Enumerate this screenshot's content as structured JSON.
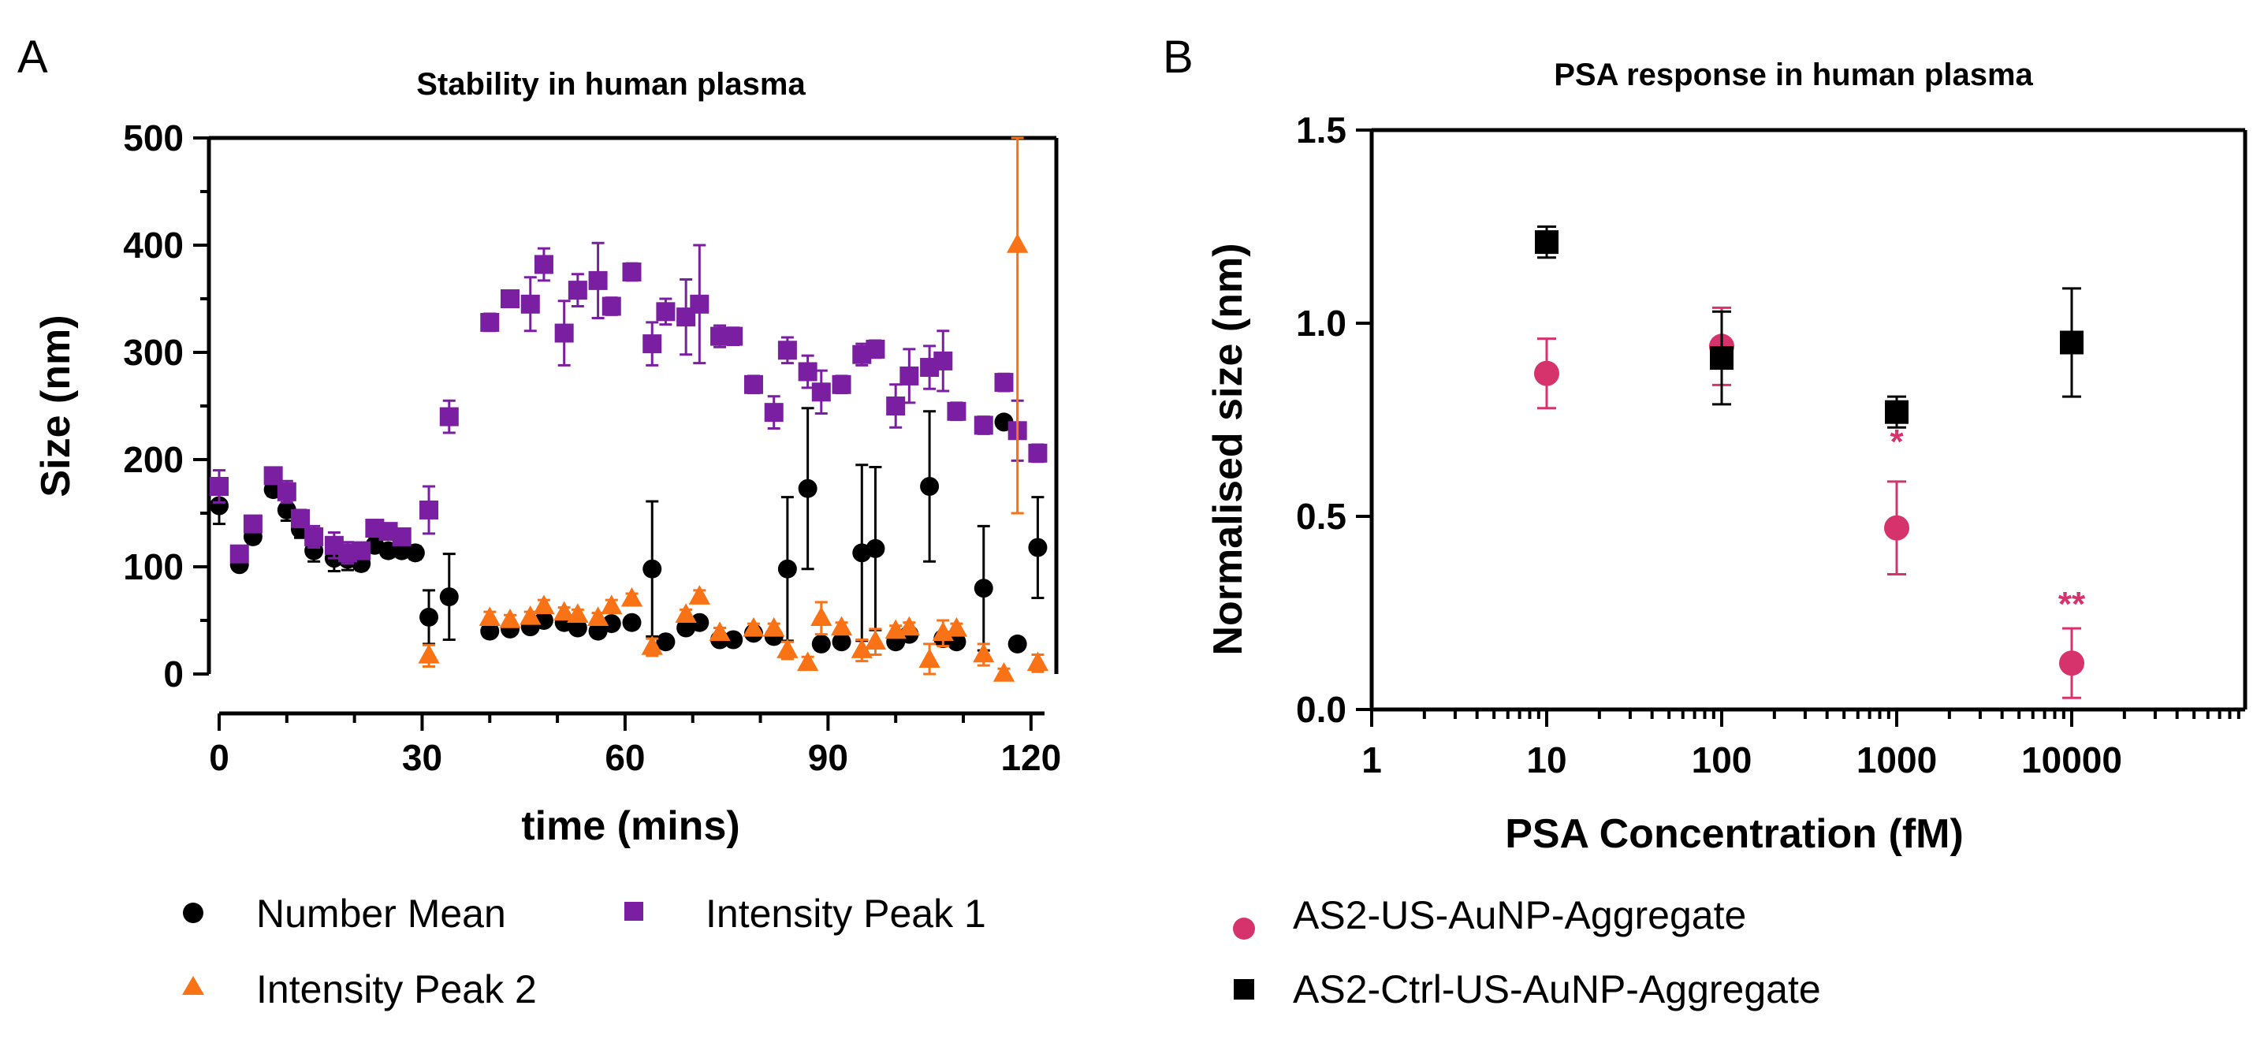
{
  "panels": {
    "a": {
      "letter": "A"
    },
    "b": {
      "letter": "B"
    }
  },
  "chart_data": [
    {
      "type": "scatter",
      "title": "Stability in human plasma",
      "xlabel": "time (mins)",
      "ylabel": "Size (nm)",
      "xlim": [
        0,
        122
      ],
      "ylim": [
        0,
        500
      ],
      "xticks": [
        0,
        30,
        60,
        90,
        120
      ],
      "yticks": [
        0,
        100,
        200,
        300,
        400,
        500
      ],
      "legend_position": "bottom",
      "series": [
        {
          "name": "Number Mean",
          "color": "#000000",
          "marker": "circle",
          "points": [
            [
              0,
              157,
              17
            ],
            [
              3,
              102,
              5
            ],
            [
              5,
              128,
              6
            ],
            [
              8,
              172,
              6
            ],
            [
              10,
              153,
              10
            ],
            [
              12,
              135,
              8
            ],
            [
              14,
              115,
              10
            ],
            [
              17,
              108,
              12
            ],
            [
              19,
              107,
              10
            ],
            [
              21,
              103,
              6
            ],
            [
              23,
              120,
              6
            ],
            [
              25,
              115,
              6
            ],
            [
              27,
              115,
              6
            ],
            [
              29,
              113,
              6
            ],
            [
              31,
              53,
              25
            ],
            [
              34,
              72,
              40
            ],
            [
              40,
              40,
              5
            ],
            [
              43,
              42,
              5
            ],
            [
              46,
              44,
              5
            ],
            [
              48,
              50,
              5
            ],
            [
              51,
              48,
              5
            ],
            [
              53,
              43,
              5
            ],
            [
              56,
              40,
              5
            ],
            [
              58,
              47,
              5
            ],
            [
              61,
              48,
              5
            ],
            [
              64,
              98,
              63
            ],
            [
              66,
              30,
              5
            ],
            [
              69,
              43,
              5
            ],
            [
              71,
              48,
              5
            ],
            [
              74,
              32,
              5
            ],
            [
              76,
              32,
              5
            ],
            [
              79,
              38,
              5
            ],
            [
              82,
              35,
              5
            ],
            [
              84,
              98,
              67
            ],
            [
              87,
              173,
              75
            ],
            [
              89,
              28,
              5
            ],
            [
              92,
              30,
              5
            ],
            [
              95,
              113,
              82
            ],
            [
              97,
              117,
              76
            ],
            [
              100,
              30,
              5
            ],
            [
              102,
              37,
              5
            ],
            [
              105,
              175,
              70
            ],
            [
              107,
              33,
              5
            ],
            [
              109,
              30,
              5
            ],
            [
              113,
              80,
              58
            ],
            [
              116,
              235,
              5
            ],
            [
              118,
              28,
              5
            ],
            [
              121,
              118,
              47
            ]
          ]
        },
        {
          "name": "Intensity Peak 1",
          "color": "#7B1FA2",
          "marker": "square",
          "points": [
            [
              0,
              175,
              15
            ],
            [
              3,
              112,
              5
            ],
            [
              5,
              140,
              6
            ],
            [
              8,
              185,
              6
            ],
            [
              10,
              170,
              10
            ],
            [
              12,
              145,
              8
            ],
            [
              14,
              128,
              10
            ],
            [
              17,
              120,
              12
            ],
            [
              19,
              113,
              10
            ],
            [
              21,
              115,
              6
            ],
            [
              23,
              136,
              6
            ],
            [
              25,
              133,
              6
            ],
            [
              27,
              128,
              6
            ],
            [
              31,
              153,
              22
            ],
            [
              34,
              240,
              15
            ],
            [
              40,
              328,
              8
            ],
            [
              43,
              350,
              6
            ],
            [
              46,
              345,
              25
            ],
            [
              48,
              382,
              15
            ],
            [
              51,
              318,
              30
            ],
            [
              53,
              358,
              15
            ],
            [
              56,
              367,
              35
            ],
            [
              58,
              343,
              8
            ],
            [
              61,
              375,
              8
            ],
            [
              64,
              308,
              20
            ],
            [
              66,
              338,
              12
            ],
            [
              69,
              333,
              35
            ],
            [
              71,
              345,
              55
            ],
            [
              74,
              315,
              10
            ],
            [
              76,
              315,
              8
            ],
            [
              79,
              270,
              8
            ],
            [
              82,
              244,
              15
            ],
            [
              84,
              302,
              12
            ],
            [
              87,
              282,
              15
            ],
            [
              89,
              263,
              20
            ],
            [
              92,
              270,
              8
            ],
            [
              95,
              298,
              10
            ],
            [
              97,
              303,
              8
            ],
            [
              100,
              250,
              20
            ],
            [
              102,
              278,
              25
            ],
            [
              105,
              286,
              20
            ],
            [
              107,
              292,
              28
            ],
            [
              109,
              245,
              8
            ],
            [
              113,
              232,
              8
            ],
            [
              116,
              272,
              8
            ],
            [
              118,
              227,
              28
            ],
            [
              121,
              206,
              8
            ]
          ]
        },
        {
          "name": "Intensity Peak 2",
          "color": "#F97316",
          "marker": "triangle",
          "points": [
            [
              31,
              17,
              10
            ],
            [
              40,
              52,
              6
            ],
            [
              43,
              50,
              5
            ],
            [
              46,
              53,
              5
            ],
            [
              48,
              63,
              6
            ],
            [
              51,
              57,
              5
            ],
            [
              53,
              55,
              5
            ],
            [
              56,
              52,
              5
            ],
            [
              58,
              63,
              6
            ],
            [
              61,
              70,
              5
            ],
            [
              64,
              25,
              8
            ],
            [
              69,
              55,
              5
            ],
            [
              71,
              72,
              6
            ],
            [
              74,
              38,
              5
            ],
            [
              79,
              42,
              5
            ],
            [
              82,
              42,
              5
            ],
            [
              84,
              22,
              8
            ],
            [
              87,
              10,
              6
            ],
            [
              89,
              52,
              15
            ],
            [
              92,
              43,
              5
            ],
            [
              95,
              22,
              10
            ],
            [
              97,
              30,
              12
            ],
            [
              100,
              40,
              5
            ],
            [
              102,
              43,
              5
            ],
            [
              105,
              13,
              15
            ],
            [
              107,
              38,
              12
            ],
            [
              109,
              42,
              5
            ],
            [
              113,
              18,
              10
            ],
            [
              116,
              0,
              5
            ],
            [
              118,
              400,
              250
            ],
            [
              121,
              10,
              8
            ]
          ]
        }
      ]
    },
    {
      "type": "scatter",
      "title": "PSA response in human plasma",
      "xlabel": "PSA Concentration (fM)",
      "ylabel": "Normalised size (nm)",
      "xscale": "log",
      "xlim": [
        1,
        100000
      ],
      "ylim": [
        0,
        1.5
      ],
      "xticks": [
        1,
        10,
        100,
        1000,
        10000
      ],
      "xticklabels": [
        "1",
        "10",
        "100",
        "1000",
        "10000"
      ],
      "yticks": [
        0.0,
        0.5,
        1.0,
        1.5
      ],
      "yticklabels": [
        "0.0",
        "0.5",
        "1.0",
        "1.5"
      ],
      "legend_position": "bottom-left",
      "series": [
        {
          "name": "AS2-US-AuNP-Aggregate",
          "color": "#D6336C",
          "marker": "circle",
          "points": [
            [
              10,
              0.87,
              0.09
            ],
            [
              100,
              0.94,
              0.1
            ],
            [
              1000,
              0.47,
              0.12
            ],
            [
              10000,
              0.12,
              0.09
            ]
          ]
        },
        {
          "name": "AS2-Ctrl-US-AuNP-Aggregate",
          "color": "#000000",
          "marker": "square",
          "points": [
            [
              10,
              1.21,
              0.04
            ],
            [
              100,
              0.91,
              0.12
            ],
            [
              1000,
              0.77,
              0.04
            ],
            [
              10000,
              0.95,
              0.14
            ]
          ]
        }
      ],
      "annotations": [
        {
          "x": 1000,
          "y": 0.7,
          "text": "*",
          "color": "#D6336C"
        },
        {
          "x": 10000,
          "y": 0.28,
          "text": "**",
          "color": "#D6336C"
        }
      ]
    }
  ]
}
